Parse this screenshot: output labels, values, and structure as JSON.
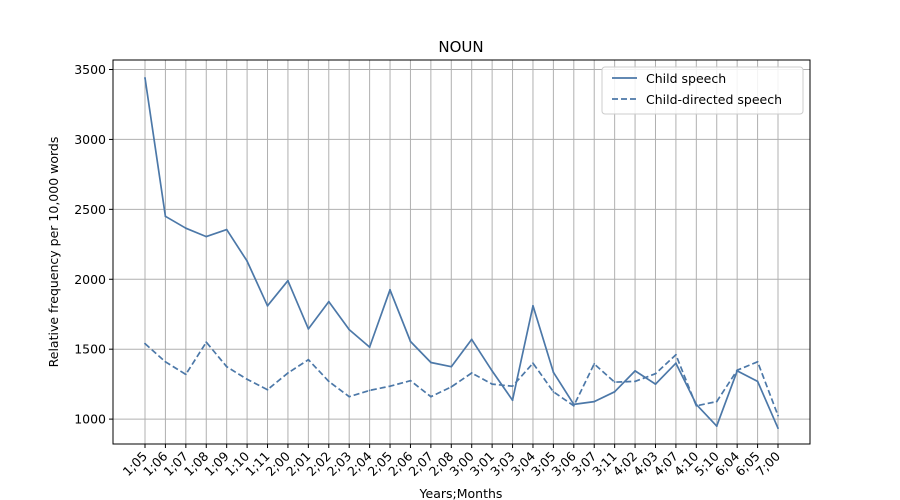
{
  "chart_data": {
    "type": "line",
    "title": "NOUN",
    "xlabel": "Years;Months",
    "ylabel": "Relative frequency per 10,000 words",
    "categories": [
      "1;05",
      "1;06",
      "1;07",
      "1;08",
      "1;09",
      "1;10",
      "1;11",
      "2;00",
      "2;01",
      "2;02",
      "2;03",
      "2;04",
      "2;05",
      "2;06",
      "2;07",
      "2;08",
      "3;00",
      "3;01",
      "3;03",
      "3;04",
      "3;05",
      "3;06",
      "3;07",
      "3;11",
      "4;02",
      "4;03",
      "4;07",
      "4;10",
      "5;10",
      "6;04",
      "6;05",
      "7;00"
    ],
    "series": [
      {
        "name": "Child speech",
        "style": "solid",
        "color": "#4c78a8",
        "values": [
          3440,
          2450,
          2365,
          2305,
          2355,
          2130,
          1810,
          1990,
          1645,
          1840,
          1640,
          1515,
          1925,
          1555,
          1405,
          1375,
          1570,
          1345,
          1135,
          1810,
          1335,
          1105,
          1125,
          1195,
          1345,
          1250,
          1400,
          1105,
          950,
          1345,
          1270,
          935
        ]
      },
      {
        "name": "Child-directed speech",
        "style": "dashed",
        "color": "#4c78a8",
        "values": [
          1540,
          1410,
          1320,
          1550,
          1375,
          1285,
          1210,
          1330,
          1425,
          1270,
          1160,
          1205,
          1235,
          1275,
          1160,
          1230,
          1330,
          1250,
          1235,
          1400,
          1195,
          1095,
          1395,
          1265,
          1270,
          1325,
          1460,
          1095,
          1125,
          1350,
          1410,
          1025
        ]
      }
    ],
    "y_ticks": [
      1000,
      1500,
      2000,
      2500,
      3000,
      3500
    ],
    "ylim": [
      822,
      3568
    ],
    "grid": true,
    "legend_position": "top-right"
  }
}
